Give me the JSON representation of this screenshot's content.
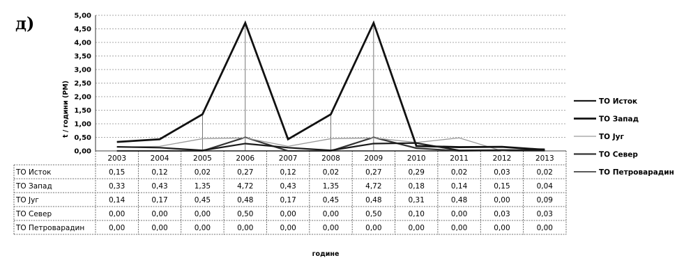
{
  "panel_label": "д)",
  "chart_data": {
    "type": "line",
    "ylabel": "t / години (PM)",
    "xlabel": "године",
    "ylim": [
      0,
      5
    ],
    "y_ticks": [
      "0,00",
      "0,50",
      "1,00",
      "1,50",
      "2,00",
      "2,50",
      "3,00",
      "3,50",
      "4,00",
      "4,50",
      "5,00"
    ],
    "categories": [
      "2003",
      "2004",
      "2005",
      "2006",
      "2007",
      "2008",
      "2009",
      "2010",
      "2011",
      "2012",
      "2013"
    ],
    "grid": true,
    "legend_position": "right",
    "series": [
      {
        "name": "ТО Исток",
        "values": [
          0.15,
          0.12,
          0.02,
          0.27,
          0.12,
          0.02,
          0.27,
          0.29,
          0.02,
          0.03,
          0.02
        ],
        "display": [
          "0,15",
          "0,12",
          "0,02",
          "0,27",
          "0,12",
          "0,02",
          "0,27",
          "0,29",
          "0,02",
          "0,03",
          "0,02"
        ],
        "color": "#1a1a1a",
        "style": "solid"
      },
      {
        "name": "ТО Запад",
        "values": [
          0.33,
          0.43,
          1.35,
          4.72,
          0.43,
          1.35,
          4.72,
          0.18,
          0.14,
          0.15,
          0.04
        ],
        "display": [
          "0,33",
          "0,43",
          "1,35",
          "4,72",
          "0,43",
          "1,35",
          "4,72",
          "0,18",
          "0,14",
          "0,15",
          "0,04"
        ],
        "color": "#111111",
        "style": "solid"
      },
      {
        "name": "ТО Југ",
        "values": [
          0.14,
          0.17,
          0.45,
          0.48,
          0.17,
          0.45,
          0.48,
          0.31,
          0.48,
          0.0,
          0.09
        ],
        "display": [
          "0,14",
          "0,17",
          "0,45",
          "0,48",
          "0,17",
          "0,45",
          "0,48",
          "0,31",
          "0,48",
          "0,00",
          "0,09"
        ],
        "color": "#9a9a9a",
        "style": "solid"
      },
      {
        "name": "ТО Север",
        "values": [
          0.0,
          0.0,
          0.0,
          0.5,
          0.0,
          0.0,
          0.5,
          0.1,
          0.0,
          0.03,
          0.03
        ],
        "display": [
          "0,00",
          "0,00",
          "0,00",
          "0,50",
          "0,00",
          "0,00",
          "0,50",
          "0,10",
          "0,00",
          "0,03",
          "0,03"
        ],
        "color": "#333333",
        "style": "solid"
      },
      {
        "name": "ТО Петроварадин",
        "values": [
          0,
          0,
          0,
          0,
          0,
          0,
          0,
          0,
          0,
          0,
          0
        ],
        "display": [
          "0,00",
          "0,00",
          "0,00",
          "0,00",
          "0,00",
          "0,00",
          "0,00",
          "0,00",
          "0,00",
          "0,00",
          "0,00"
        ],
        "color": "#222222",
        "style": "solid"
      }
    ]
  }
}
